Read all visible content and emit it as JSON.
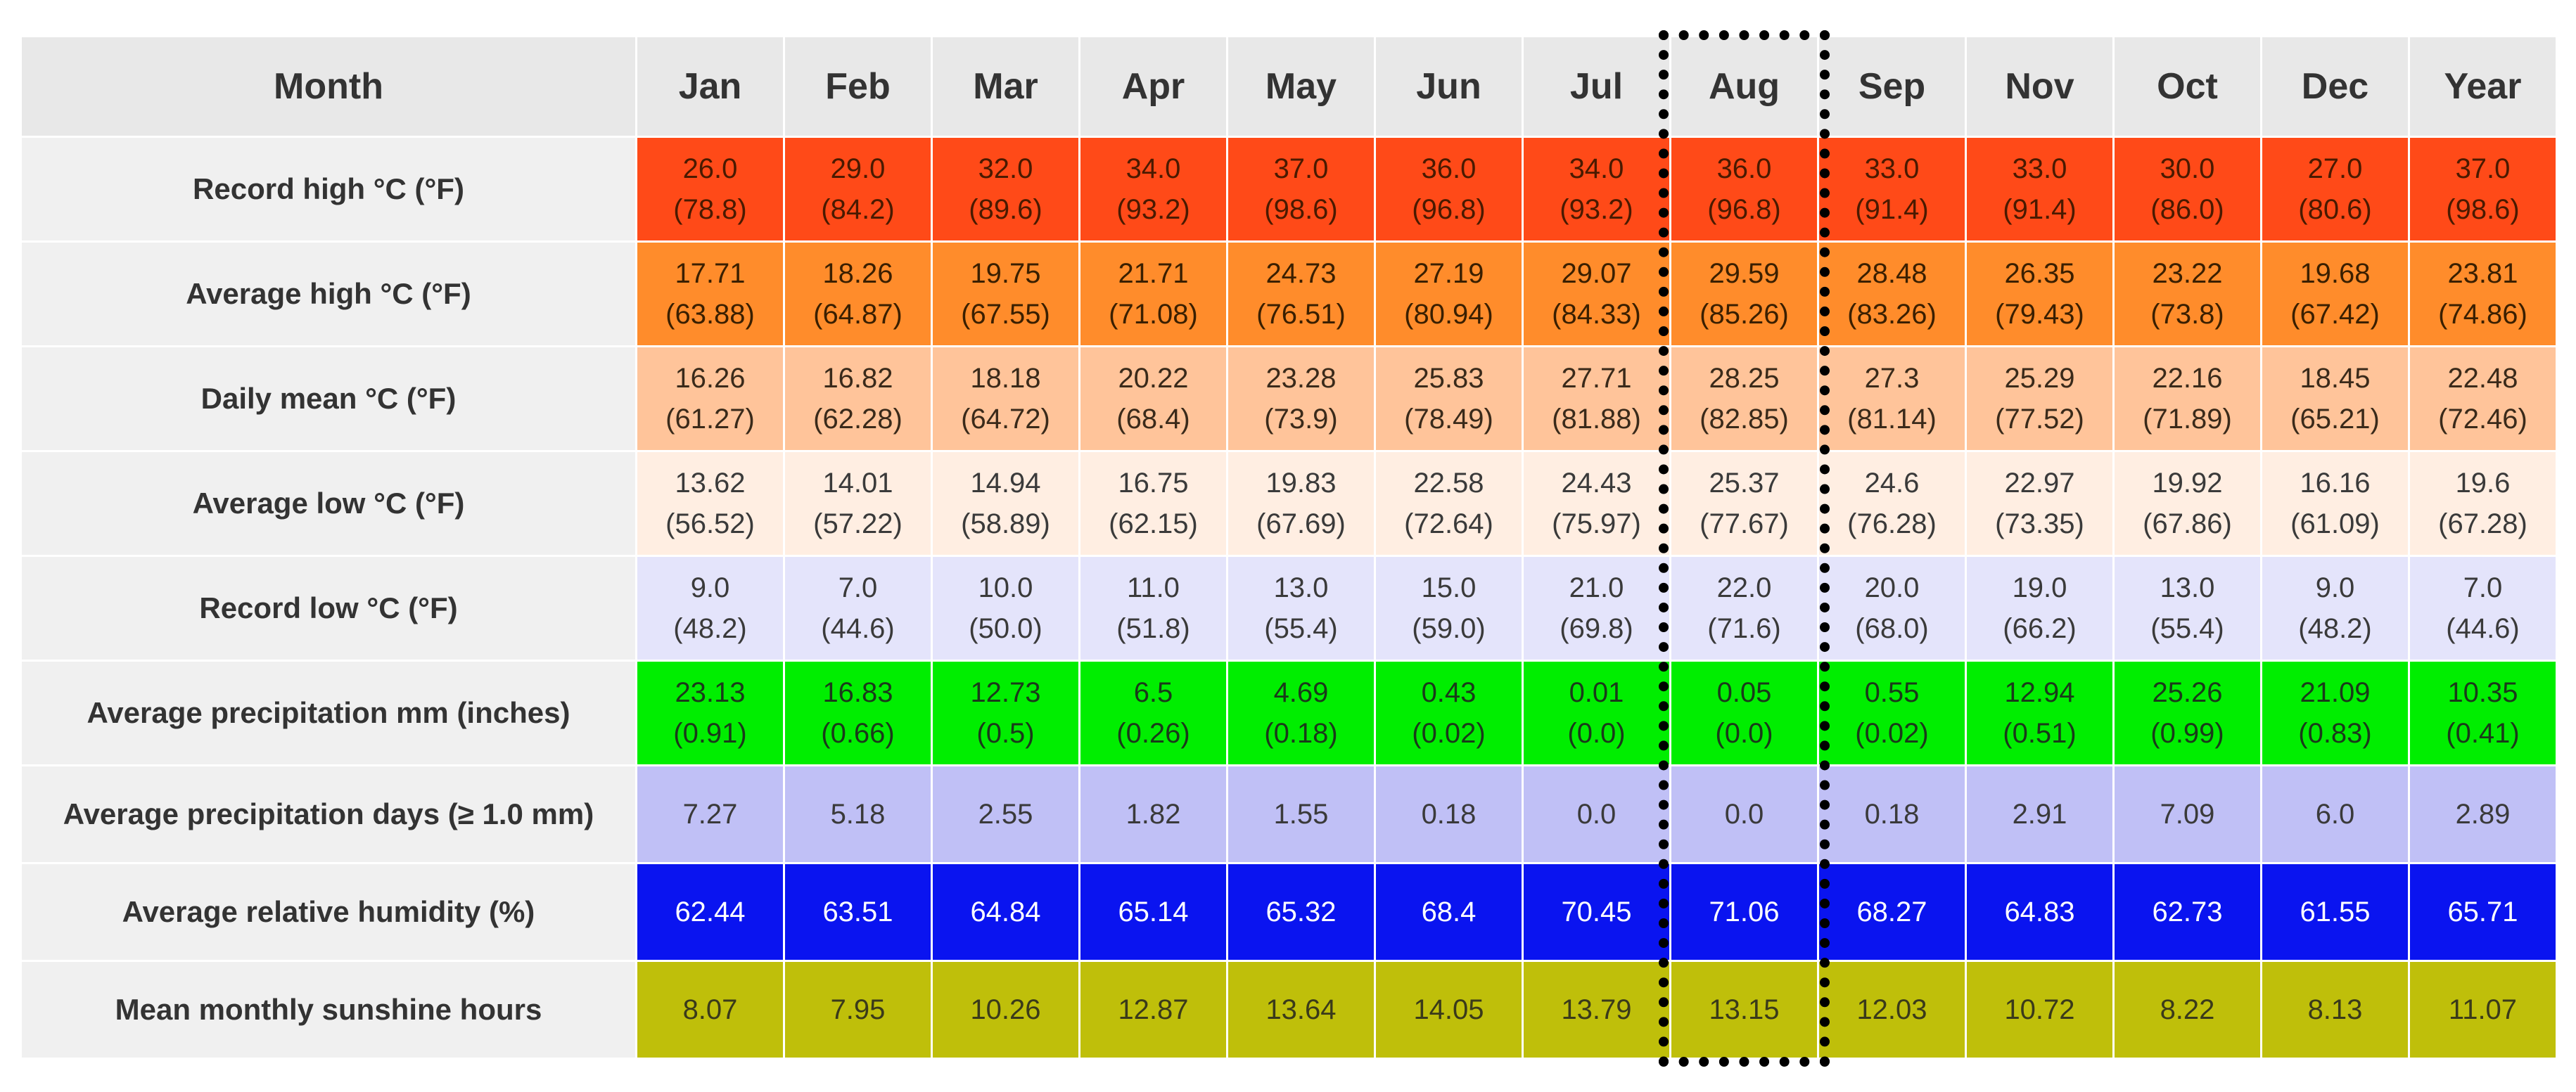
{
  "table": {
    "header_label": "Month",
    "months": [
      "Jan",
      "Feb",
      "Mar",
      "Apr",
      "May",
      "Jun",
      "Jul",
      "Aug",
      "Sep",
      "Nov",
      "Oct",
      "Dec",
      "Year"
    ],
    "highlight_column": "Aug",
    "rows": [
      {
        "label": "Record high °C (°F)",
        "bg": "#ff4a18",
        "fg": "#4a1a00",
        "values": [
          "26.0",
          "29.0",
          "32.0",
          "34.0",
          "37.0",
          "36.0",
          "34.0",
          "36.0",
          "33.0",
          "33.0",
          "30.0",
          "27.0",
          "37.0"
        ],
        "sub": [
          "(78.8)",
          "(84.2)",
          "(89.6)",
          "(93.2)",
          "(98.6)",
          "(96.8)",
          "(93.2)",
          "(96.8)",
          "(91.4)",
          "(91.4)",
          "(86.0)",
          "(80.6)",
          "(98.6)"
        ]
      },
      {
        "label": "Average high °C (°F)",
        "bg": "#ff8c2b",
        "fg": "#3a1f00",
        "values": [
          "17.71",
          "18.26",
          "19.75",
          "21.71",
          "24.73",
          "27.19",
          "29.07",
          "29.59",
          "28.48",
          "26.35",
          "23.22",
          "19.68",
          "23.81"
        ],
        "sub": [
          "(63.88)",
          "(64.87)",
          "(67.55)",
          "(71.08)",
          "(76.51)",
          "(80.94)",
          "(84.33)",
          "(85.26)",
          "(83.26)",
          "(79.43)",
          "(73.8)",
          "(67.42)",
          "(74.86)"
        ]
      },
      {
        "label": "Daily mean °C (°F)",
        "bg": "#ffc49a",
        "fg": "#3a2a1a",
        "values": [
          "16.26",
          "16.82",
          "18.18",
          "20.22",
          "23.28",
          "25.83",
          "27.71",
          "28.25",
          "27.3",
          "25.29",
          "22.16",
          "18.45",
          "22.48"
        ],
        "sub": [
          "(61.27)",
          "(62.28)",
          "(64.72)",
          "(68.4)",
          "(73.9)",
          "(78.49)",
          "(81.88)",
          "(82.85)",
          "(81.14)",
          "(77.52)",
          "(71.89)",
          "(65.21)",
          "(72.46)"
        ]
      },
      {
        "label": "Average low °C (°F)",
        "bg": "#ffeee2",
        "fg": "#3a3a3a",
        "values": [
          "13.62",
          "14.01",
          "14.94",
          "16.75",
          "19.83",
          "22.58",
          "24.43",
          "25.37",
          "24.6",
          "22.97",
          "19.92",
          "16.16",
          "19.6"
        ],
        "sub": [
          "(56.52)",
          "(57.22)",
          "(58.89)",
          "(62.15)",
          "(67.69)",
          "(72.64)",
          "(75.97)",
          "(77.67)",
          "(76.28)",
          "(73.35)",
          "(67.86)",
          "(61.09)",
          "(67.28)"
        ]
      },
      {
        "label": "Record low °C (°F)",
        "bg": "#e4e4fb",
        "fg": "#3a3a3a",
        "values": [
          "9.0",
          "7.0",
          "10.0",
          "11.0",
          "13.0",
          "15.0",
          "21.0",
          "22.0",
          "20.0",
          "19.0",
          "13.0",
          "9.0",
          "7.0"
        ],
        "sub": [
          "(48.2)",
          "(44.6)",
          "(50.0)",
          "(51.8)",
          "(55.4)",
          "(59.0)",
          "(69.8)",
          "(71.6)",
          "(68.0)",
          "(66.2)",
          "(55.4)",
          "(48.2)",
          "(44.6)"
        ]
      },
      {
        "label": "Average precipitation mm (inches)",
        "bg": "#00ee00",
        "fg": "#1a3a1a",
        "values": [
          "23.13",
          "16.83",
          "12.73",
          "6.5",
          "4.69",
          "0.43",
          "0.01",
          "0.05",
          "0.55",
          "12.94",
          "25.26",
          "21.09",
          "10.35"
        ],
        "sub": [
          "(0.91)",
          "(0.66)",
          "(0.5)",
          "(0.26)",
          "(0.18)",
          "(0.02)",
          "(0.0)",
          "(0.0)",
          "(0.02)",
          "(0.51)",
          "(0.99)",
          "(0.83)",
          "(0.41)"
        ]
      },
      {
        "label": "Average precipitation days (≥ 1.0 mm)",
        "bg": "#c0c0f6",
        "fg": "#3a3a3a",
        "values": [
          "7.27",
          "5.18",
          "2.55",
          "1.82",
          "1.55",
          "0.18",
          "0.0",
          "0.0",
          "0.18",
          "2.91",
          "7.09",
          "6.0",
          "2.89"
        ]
      },
      {
        "label": "Average relative humidity (%)",
        "bg": "#0a14f0",
        "fg": "#ffffff",
        "values": [
          "62.44",
          "63.51",
          "64.84",
          "65.14",
          "65.32",
          "68.4",
          "70.45",
          "71.06",
          "68.27",
          "64.83",
          "62.73",
          "61.55",
          "65.71"
        ]
      },
      {
        "label": "Mean monthly sunshine hours",
        "bg": "#bfbf0a",
        "fg": "#3a3a1a",
        "values": [
          "8.07",
          "7.95",
          "10.26",
          "12.87",
          "13.64",
          "14.05",
          "13.79",
          "13.15",
          "12.03",
          "10.72",
          "8.22",
          "8.13",
          "11.07"
        ]
      }
    ]
  }
}
